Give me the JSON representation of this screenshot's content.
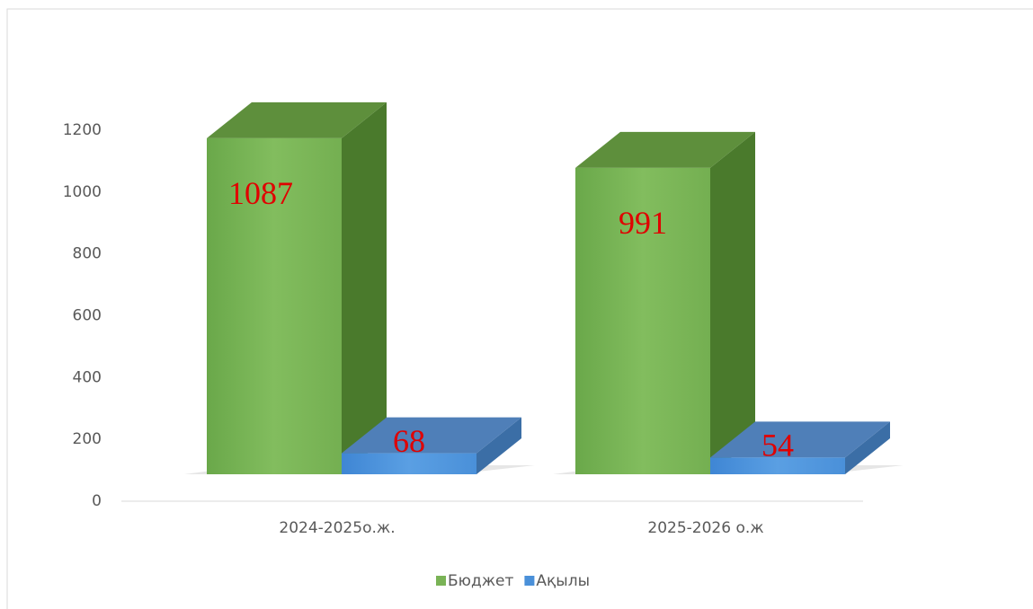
{
  "chart_data": {
    "type": "bar3d",
    "categories": [
      "2024-2025о.ж.",
      "2025-2026 о.ж"
    ],
    "series": [
      {
        "name": "Бюджет",
        "color": "#7ab356",
        "values": [
          1087,
          991
        ]
      },
      {
        "name": "Ақылы",
        "color": "#4a90d9",
        "values": [
          68,
          54
        ]
      }
    ],
    "ylim": [
      0,
      1200
    ],
    "yticks": [
      0,
      200,
      400,
      600,
      800,
      1000,
      1200
    ],
    "legend": "bottom"
  }
}
